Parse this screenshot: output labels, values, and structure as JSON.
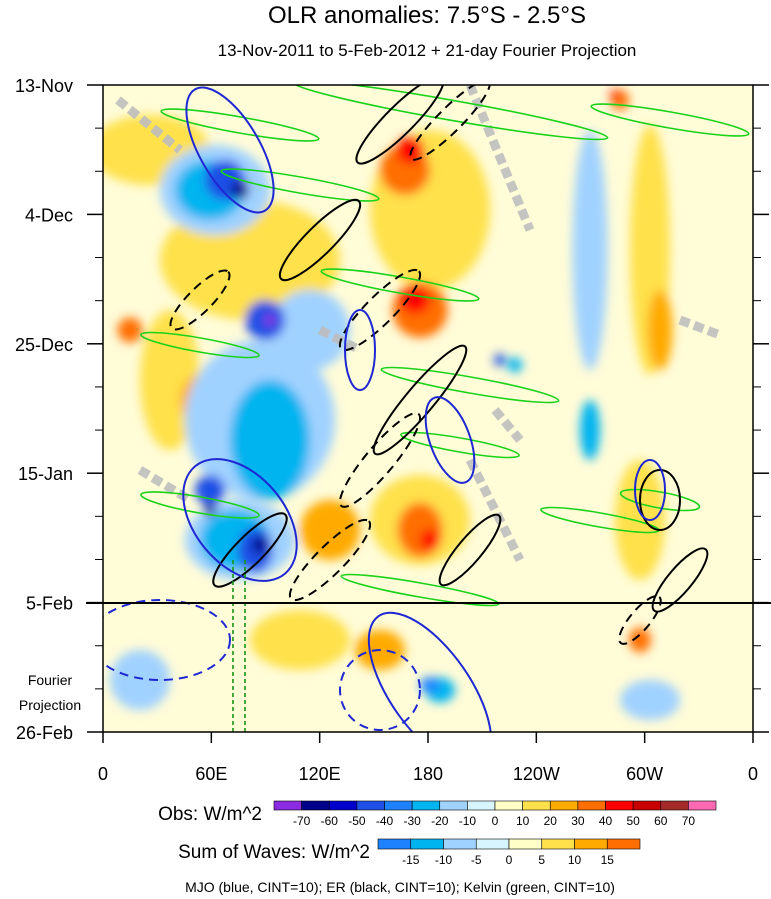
{
  "chart_data": {
    "type": "heatmap",
    "title": "OLR anomalies: 7.5°S - 2.5°S",
    "subtitle": "13-Nov-2011 to 5-Feb-2012 + 21-day Fourier Projection",
    "x_ticks": [
      "0",
      "60E",
      "120E",
      "180",
      "120W",
      "60W",
      "0"
    ],
    "x_lon": [
      0,
      60,
      120,
      180,
      240,
      300,
      360
    ],
    "y_ticks": [
      "13-Nov",
      "4-Dec",
      "25-Dec",
      "15-Jan",
      "5-Feb",
      "26-Feb"
    ],
    "y_day": [
      0,
      21,
      42,
      63,
      84,
      105
    ],
    "projection_label_1": "Fourier",
    "projection_label_2": "Projection",
    "obs_colorbar": {
      "label": "Obs: W/m^2",
      "levels": [
        "-70",
        "-60",
        "-50",
        "-40",
        "-30",
        "-20",
        "-10",
        "0",
        "10",
        "20",
        "30",
        "40",
        "50",
        "60",
        "70"
      ],
      "colors": [
        "#8a2be2",
        "#00008b",
        "#0000cd",
        "#1e50e6",
        "#1e82ff",
        "#00b4f0",
        "#a0d2ff",
        "#d7f5ff",
        "#ffffc8",
        "#ffe14b",
        "#ffaa00",
        "#ff6e00",
        "#ff0000",
        "#c80000",
        "#a52a2a",
        "#ff69b4"
      ]
    },
    "waves_colorbar": {
      "label": "Sum of Waves: W/m^2",
      "levels": [
        "-15",
        "-10",
        "-5",
        "0",
        "5",
        "10",
        "15"
      ],
      "colors": [
        "#1e82ff",
        "#00b4f0",
        "#a0d2ff",
        "#d7f5ff",
        "#ffffc8",
        "#ffe14b",
        "#ffaa00",
        "#ff6e00"
      ]
    },
    "footer": "MJO (blue, CINT=10); ER (black, CINT=10); Kelvin (green, CINT=10)",
    "colors": {
      "mjo": "#1e28d2",
      "er": "#000000",
      "kelvin": "#19d219",
      "missing": "#bebebe"
    }
  }
}
